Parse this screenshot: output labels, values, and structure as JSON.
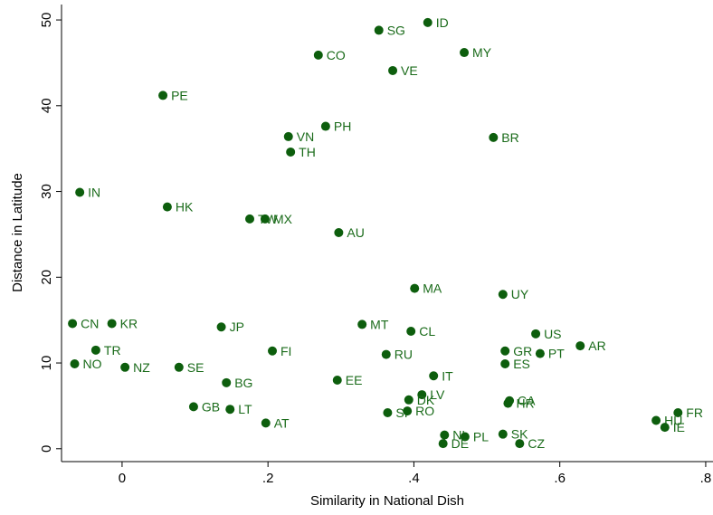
{
  "chart_data": {
    "type": "scatter",
    "x_label": "Similarity in National Dish",
    "y_label": "Distance in Latitude",
    "color": "#0d5e0d",
    "xlim": [
      -0.083,
      0.81
    ],
    "ylim": [
      -1.5,
      51.8
    ],
    "xticks": [
      0,
      {
        "value": 0.2,
        "label": ".2"
      },
      {
        "value": 0.4,
        "label": ".4"
      },
      {
        "value": 0.6,
        "label": ".6"
      },
      {
        "value": 0.8,
        "label": ".8"
      }
    ],
    "yticks": [
      0,
      10,
      20,
      30,
      40,
      50
    ],
    "labels": [
      "ID",
      "SG",
      "CO",
      "MY",
      "VE",
      "PE",
      "PH",
      "VN",
      "BR",
      "TH",
      "IN",
      "HK",
      "TW",
      "MX",
      "AU",
      "MA",
      "UY",
      "CN",
      "KR",
      "JP",
      "MT",
      "CL",
      "US",
      "AR",
      "TR",
      "FI",
      "GR",
      "RU",
      "PT",
      "NO",
      "NZ",
      "SE",
      "ES",
      "IT",
      "EE",
      "BG",
      "LV",
      "DK",
      "HR",
      "CA",
      "GB",
      "LT",
      "SI",
      "RO",
      "FR",
      "HU",
      "IE",
      "AT",
      "SK",
      "NL",
      "PL",
      "DE",
      "CZ"
    ],
    "x": [
      0.419,
      0.352,
      0.269,
      0.469,
      0.371,
      0.056,
      0.279,
      0.228,
      0.509,
      0.231,
      -0.058,
      0.062,
      0.175,
      0.196,
      0.297,
      0.401,
      0.522,
      -0.068,
      -0.014,
      0.136,
      0.329,
      0.396,
      0.567,
      0.628,
      -0.036,
      0.206,
      0.525,
      0.362,
      0.573,
      -0.065,
      0.004,
      0.078,
      0.525,
      0.427,
      0.295,
      0.143,
      0.411,
      0.393,
      0.529,
      0.531,
      0.098,
      0.148,
      0.364,
      0.391,
      0.762,
      0.732,
      0.744,
      0.197,
      0.522,
      0.442,
      0.47,
      0.44,
      0.545
    ],
    "values": [
      49.7,
      48.8,
      45.9,
      46.2,
      44.1,
      41.2,
      37.6,
      36.4,
      36.3,
      34.6,
      29.9,
      28.2,
      26.8,
      26.8,
      25.2,
      18.7,
      18.0,
      14.6,
      14.6,
      14.2,
      14.5,
      13.7,
      13.4,
      12.0,
      11.5,
      11.4,
      11.4,
      11.0,
      11.1,
      9.9,
      9.5,
      9.5,
      9.9,
      8.5,
      8.0,
      7.7,
      6.3,
      5.7,
      5.3,
      5.6,
      4.9,
      4.6,
      4.2,
      4.4,
      4.2,
      3.3,
      2.5,
      3.0,
      1.7,
      1.6,
      1.4,
      0.6,
      0.6
    ]
  }
}
